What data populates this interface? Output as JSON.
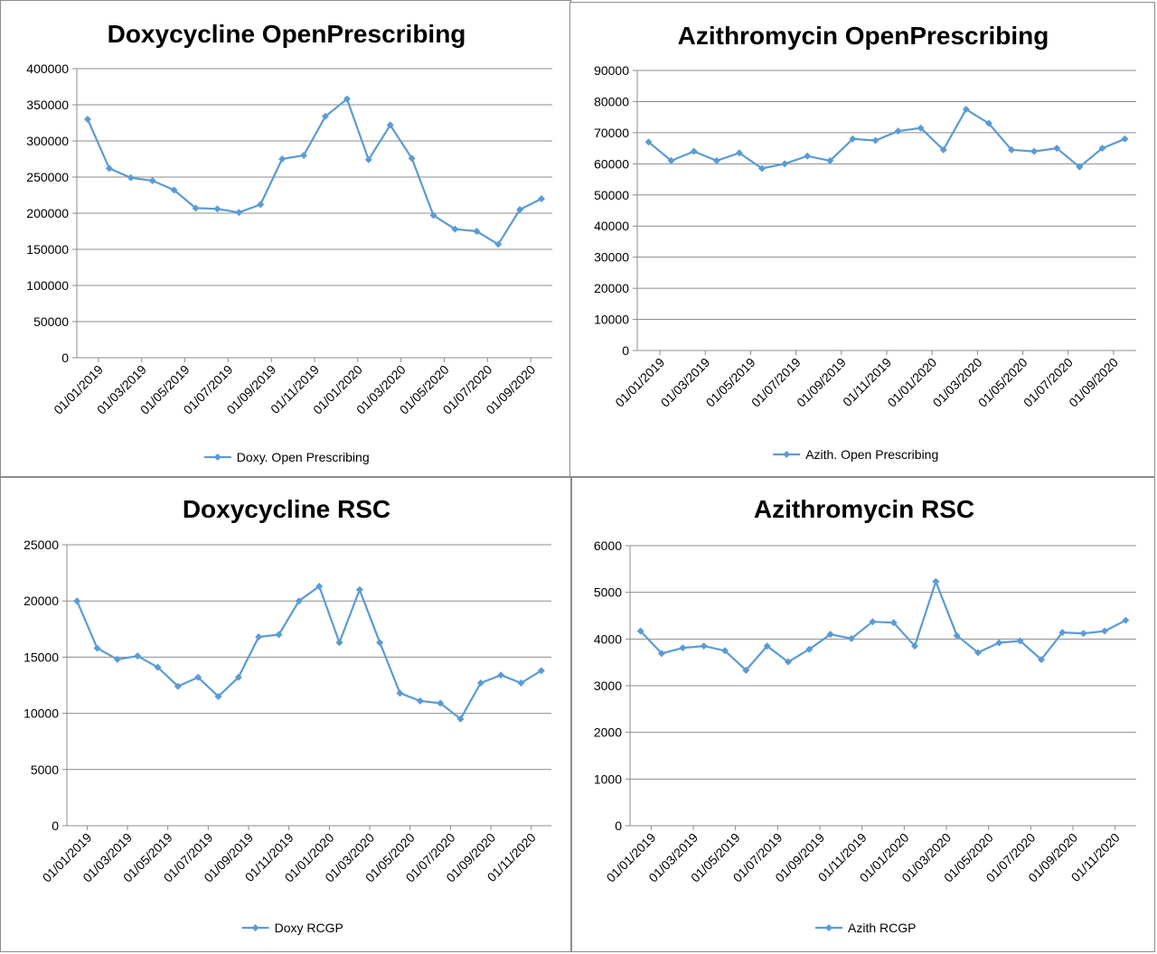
{
  "colors": {
    "series": "#5b9bd5",
    "grid": "#8c8c8c",
    "axis": "#8c8c8c",
    "border": "#8c8c8c"
  },
  "chart_data": [
    {
      "type": "line",
      "title": "Doxycycline OpenPrescribing",
      "xlabel": "",
      "ylabel": "",
      "ylim": [
        0,
        400000
      ],
      "ystep": 50000,
      "yticks": [
        "0",
        "50000",
        "100000",
        "150000",
        "200000",
        "250000",
        "300000",
        "350000",
        "400000"
      ],
      "xticks": [
        "01/01/2019",
        "01/03/2019",
        "01/05/2019",
        "01/07/2019",
        "01/09/2019",
        "01/11/2019",
        "01/01/2020",
        "01/03/2020",
        "01/05/2020",
        "01/07/2020",
        "01/09/2020"
      ],
      "grid": true,
      "legend_position": "bottom",
      "series": [
        {
          "name": "Doxy. Open Prescribing",
          "values": [
            330000,
            262000,
            249000,
            245000,
            232000,
            207000,
            206000,
            201000,
            212000,
            275000,
            280000,
            334000,
            358000,
            274000,
            322000,
            276000,
            197000,
            178000,
            175000,
            157000,
            205000,
            220000
          ]
        }
      ]
    },
    {
      "type": "line",
      "title": "Azithromycin OpenPrescribing",
      "xlabel": "",
      "ylabel": "",
      "ylim": [
        0,
        90000
      ],
      "ystep": 10000,
      "yticks": [
        "0",
        "10000",
        "20000",
        "30000",
        "40000",
        "50000",
        "60000",
        "70000",
        "80000",
        "90000"
      ],
      "xticks": [
        "01/01/2019",
        "01/03/2019",
        "01/05/2019",
        "01/07/2019",
        "01/09/2019",
        "01/11/2019",
        "01/01/2020",
        "01/03/2020",
        "01/05/2020",
        "01/07/2020",
        "01/09/2020"
      ],
      "grid": true,
      "legend_position": "bottom",
      "series": [
        {
          "name": "Azith. Open Prescribing",
          "values": [
            67000,
            61000,
            64000,
            61000,
            63500,
            58500,
            60000,
            62500,
            61000,
            68000,
            67500,
            70500,
            71500,
            64500,
            77500,
            73000,
            64500,
            64000,
            65000,
            59000,
            65000,
            68000
          ]
        }
      ]
    },
    {
      "type": "line",
      "title": "Doxycycline RSC",
      "xlabel": "",
      "ylabel": "",
      "ylim": [
        0,
        25000
      ],
      "ystep": 5000,
      "yticks": [
        "0",
        "5000",
        "10000",
        "15000",
        "20000",
        "25000"
      ],
      "xticks": [
        "01/01/2019",
        "01/03/2019",
        "01/05/2019",
        "01/07/2019",
        "01/09/2019",
        "01/11/2019",
        "01/01/2020",
        "01/03/2020",
        "01/05/2020",
        "01/07/2020",
        "01/09/2020",
        "01/11/2020"
      ],
      "grid": true,
      "legend_position": "bottom",
      "series": [
        {
          "name": "Doxy RCGP",
          "values": [
            20000,
            15800,
            14800,
            15100,
            14100,
            12400,
            13200,
            11500,
            13200,
            16800,
            17000,
            20000,
            21300,
            16300,
            21000,
            16300,
            11800,
            11100,
            10900,
            9500,
            12700,
            13400,
            12700,
            13800
          ]
        }
      ]
    },
    {
      "type": "line",
      "title": "Azithromycin RSC",
      "xlabel": "",
      "ylabel": "",
      "ylim": [
        0,
        6000
      ],
      "ystep": 1000,
      "yticks": [
        "0",
        "1000",
        "2000",
        "3000",
        "4000",
        "5000",
        "6000"
      ],
      "xticks": [
        "01/01/2019",
        "01/03/2019",
        "01/05/2019",
        "01/07/2019",
        "01/09/2019",
        "01/11/2019",
        "01/01/2020",
        "01/03/2020",
        "01/05/2020",
        "01/07/2020",
        "01/09/2020",
        "01/11/2020"
      ],
      "grid": true,
      "legend_position": "bottom",
      "series": [
        {
          "name": "Azith RCGP",
          "values": [
            4170,
            3690,
            3810,
            3850,
            3750,
            3330,
            3850,
            3510,
            3780,
            4100,
            4010,
            4370,
            4350,
            3850,
            5230,
            4070,
            3710,
            3920,
            3960,
            3560,
            4140,
            4120,
            4170,
            4400
          ]
        }
      ]
    }
  ]
}
